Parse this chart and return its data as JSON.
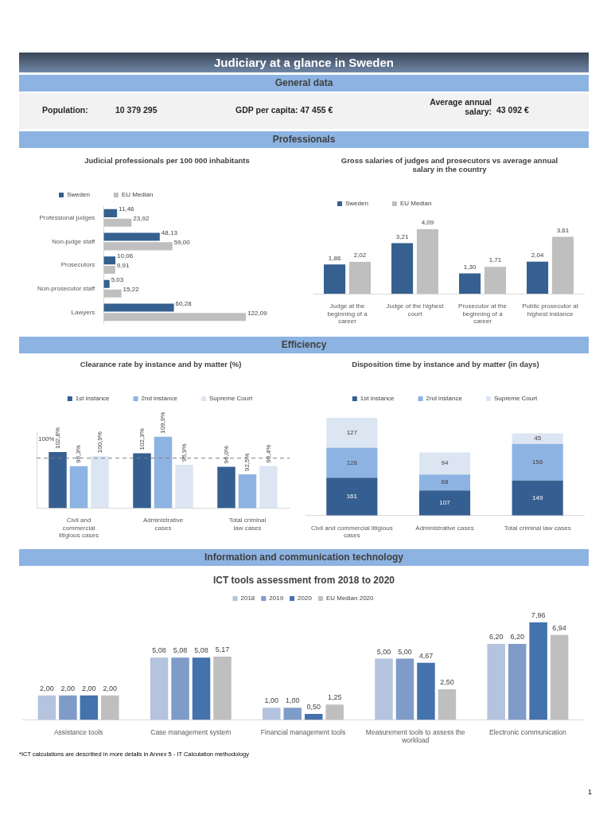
{
  "chart_data": [
    {
      "type": "other",
      "title": "Judiciary at a glance in Sweden",
      "subtitle": "General data",
      "annotations": [
        "Population:",
        "10 379 295",
        "GDP per capita: 47 455 €",
        "Average annual salary:",
        "43 092 €"
      ]
    },
    {
      "type": "other",
      "title": "Professionals"
    },
    {
      "type": "bar",
      "title": "Judicial professionals per 100 000 inhabitants",
      "orientation": "horizontal",
      "categories": [
        "Professional judges",
        "Non-judge staff",
        "Prosecutors",
        "Non-prosecutor staff",
        "Lawyers"
      ],
      "legend": "top left",
      "tick_labels": "y",
      "series": [
        {
          "name": "Sweden",
          "color": "#35608f",
          "values": [
            11.46,
            48.13,
            10.06,
            5.03,
            60.28
          ],
          "value_labels": [
            "11,46",
            "48,13",
            "10,06",
            "5,03",
            "60,28"
          ]
        },
        {
          "name": "EU Median",
          "color": "#bfbfbf",
          "values": [
            23.92,
            59.0,
            9.91,
            15.22,
            122.09
          ],
          "value_labels": [
            "23,92",
            "59,00",
            "9,91",
            "15,22",
            "122,09"
          ]
        }
      ]
    },
    {
      "type": "bar",
      "title": "Gross salaries of judges and prosecutors vs average annual salary in the country",
      "categories": [
        "Judge at the beginning of a career",
        "Judge of the highest court",
        "Prosecutor at the beginning of a career",
        "Public prosecutor at highest instance"
      ],
      "legend": "top left",
      "tick_labels": "x",
      "series": [
        {
          "name": "Sweden",
          "color": "#35608f",
          "values": [
            1.86,
            3.21,
            1.3,
            2.04
          ],
          "value_labels": [
            "1,86",
            "3,21",
            "1,30",
            "2,04"
          ]
        },
        {
          "name": "EU Median",
          "color": "#bfbfbf",
          "values": [
            2.02,
            4.09,
            1.71,
            3.61
          ],
          "value_labels": [
            "2,02",
            "4,09",
            "1,71",
            "3,61"
          ]
        }
      ]
    },
    {
      "type": "other",
      "title": "Efficiency"
    },
    {
      "type": "bar",
      "title": "Clearance rate by instance and by matter (%)",
      "categories": [
        "Civil and commercial litigious cases",
        "Administrative cases",
        "Total criminal law cases"
      ],
      "legend": "top",
      "tick_labels": "x",
      "ylim": [
        77,
        112
      ],
      "ref_lines": [
        {
          "axis": "y",
          "value": 100,
          "label": "100%",
          "color": "#7f7f7f",
          "line_style": "dashed"
        }
      ],
      "series": [
        {
          "name": "1st instance",
          "color": "#365f91",
          "values": [
            102.8,
            102.3,
            96.0
          ],
          "value_labels": [
            "102,8%",
            "102,3%",
            "96,0%"
          ]
        },
        {
          "name": "2nd instance",
          "color": "#8db3e2",
          "values": [
            96.3,
            109.9,
            92.5
          ],
          "value_labels": [
            "96,3%",
            "109,9%",
            "92,5%"
          ]
        },
        {
          "name": "Supreme Court",
          "color": "#dce6f2",
          "values": [
            100.9,
            96.9,
            96.4
          ],
          "value_labels": [
            "100,9%",
            "96,9%",
            "96,4%"
          ]
        }
      ]
    },
    {
      "type": "bar",
      "title": "Disposition time by instance and by matter (in days)",
      "stacked": true,
      "categories": [
        "Civil and commercial litigious cases",
        "Administrative cases",
        "Total criminal law cases"
      ],
      "legend": "top",
      "tick_labels": "x",
      "series": [
        {
          "name": "1st instance",
          "color": "#365f91",
          "values": [
            161,
            107,
            149
          ],
          "value_labels": [
            "161",
            "107",
            "149"
          ]
        },
        {
          "name": "2nd instance",
          "color": "#8db3e2",
          "values": [
            128,
            68,
            156
          ],
          "value_labels": [
            "128",
            "68",
            "156"
          ]
        },
        {
          "name": "Supreme Court",
          "color": "#dce6f2",
          "values": [
            127,
            94,
            45
          ],
          "value_labels": [
            "127",
            "94",
            "45"
          ]
        }
      ]
    },
    {
      "type": "other",
      "title": "Information and communication technology"
    },
    {
      "type": "bar",
      "title": "ICT tools assessment from 2018 to 2020",
      "categories": [
        "Assistance tools",
        "Case management system",
        "Financial management tools",
        "Measurement tools to assess the workload",
        "Electronic communication"
      ],
      "legend": "top",
      "tick_labels": "x",
      "annotations": [
        "*ICT calculations are described in more details in Annex 5 - IT Calculation methodology",
        "1"
      ],
      "series": [
        {
          "name": "2018",
          "color": "#b4c3de",
          "values": [
            2.0,
            5.08,
            1.0,
            5.0,
            6.2
          ],
          "value_labels": [
            "2,00",
            "5,08",
            "1,00",
            "5,00",
            "6,20"
          ]
        },
        {
          "name": "2019",
          "color": "#7f9cc9",
          "values": [
            2.0,
            5.08,
            1.0,
            5.0,
            6.2
          ],
          "value_labels": [
            "2,00",
            "5,08",
            "1,00",
            "5,00",
            "6,20"
          ]
        },
        {
          "name": "2020",
          "color": "#4472ac",
          "values": [
            2.0,
            5.08,
            0.5,
            4.67,
            7.96
          ],
          "value_labels": [
            "2,00",
            "5,08",
            "0,50",
            "4,67",
            "7,96"
          ]
        },
        {
          "name": "EU Median 2020",
          "color": "#bfbfbf",
          "values": [
            2.0,
            5.17,
            1.25,
            2.5,
            6.94
          ],
          "value_labels": [
            "2,00",
            "5,17",
            "1,25",
            "2,50",
            "6,94"
          ]
        }
      ]
    }
  ]
}
